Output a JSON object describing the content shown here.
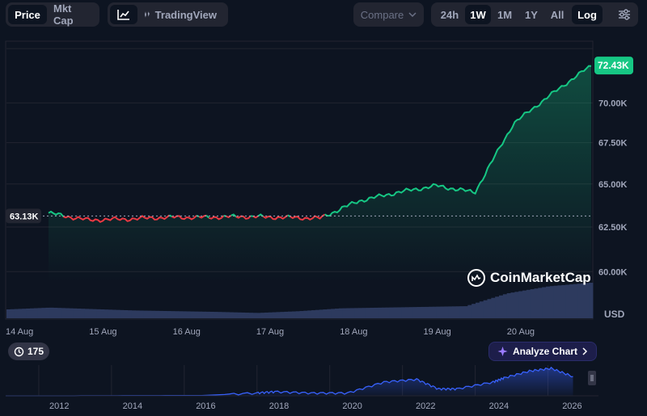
{
  "toolbar": {
    "price_label": "Price",
    "mktcap_label": "Mkt Cap",
    "tradingview_label": "TradingView",
    "compare_label": "Compare",
    "ranges": [
      "24h",
      "1W",
      "1M",
      "1Y",
      "All"
    ],
    "active_range": "1W",
    "log_label": "Log",
    "icons": [
      "line-chart-icon",
      "candlestick-icon",
      "chevron-down-icon",
      "settings-sliders-icon"
    ]
  },
  "price": {
    "current_label": "72.43K",
    "reference_label": "63.13K"
  },
  "y_ticks": [
    "70.00K",
    "67.50K",
    "65.00K",
    "62.50K",
    "60.00K"
  ],
  "y_axis_bottom_label": "USD",
  "x_ticks": [
    "14 Aug",
    "15 Aug",
    "16 Aug",
    "17 Aug",
    "18 Aug",
    "19 Aug",
    "20 Aug"
  ],
  "brand_label": "CoinMarketCap",
  "history_badge": "175",
  "analyze_label": "Analyze Chart",
  "navigator_years": [
    "2012",
    "2014",
    "2016",
    "2018",
    "2020",
    "2022",
    "2024",
    "2026"
  ],
  "colors": {
    "background": "#0d1421",
    "up": "#16c784",
    "down": "#ea3943",
    "volume": "#2d3a5e",
    "navigator_line": "#3861fb"
  },
  "chart_data": {
    "type": "line",
    "x_dates": [
      "14 Aug",
      "14 Aug",
      "15 Aug",
      "15 Aug",
      "16 Aug",
      "16 Aug",
      "17 Aug",
      "17 Aug",
      "18 Aug",
      "18 Aug",
      "19 Aug",
      "19 Aug",
      "20 Aug",
      "20 Aug",
      "21 Aug"
    ],
    "values": [
      63.3,
      62.9,
      62.95,
      63.05,
      63.05,
      63.1,
      63.05,
      63.0,
      64.0,
      64.5,
      64.9,
      64.5,
      68.7,
      70.6,
      72.43
    ],
    "reference_value": 63.13,
    "ylim": [
      57.5,
      74.0
    ],
    "y_scale": "log",
    "volume_profile": [
      0.25,
      0.3,
      0.26,
      0.22,
      0.2,
      0.18,
      0.15,
      0.2,
      0.28,
      0.3,
      0.32,
      0.34,
      0.7,
      0.9,
      1.0
    ],
    "navigator": {
      "years": [
        2010.6,
        2012,
        2014,
        2016,
        2017.5,
        2018,
        2019,
        2020,
        2021,
        2021.9,
        2022.5,
        2023,
        2024,
        2024.3,
        2025,
        2025.6,
        2026.2
      ],
      "values": [
        0.0,
        0.0,
        0.005,
        0.01,
        0.1,
        0.15,
        0.1,
        0.1,
        0.5,
        0.6,
        0.25,
        0.25,
        0.5,
        0.65,
        0.9,
        1.0,
        0.7
      ]
    }
  }
}
